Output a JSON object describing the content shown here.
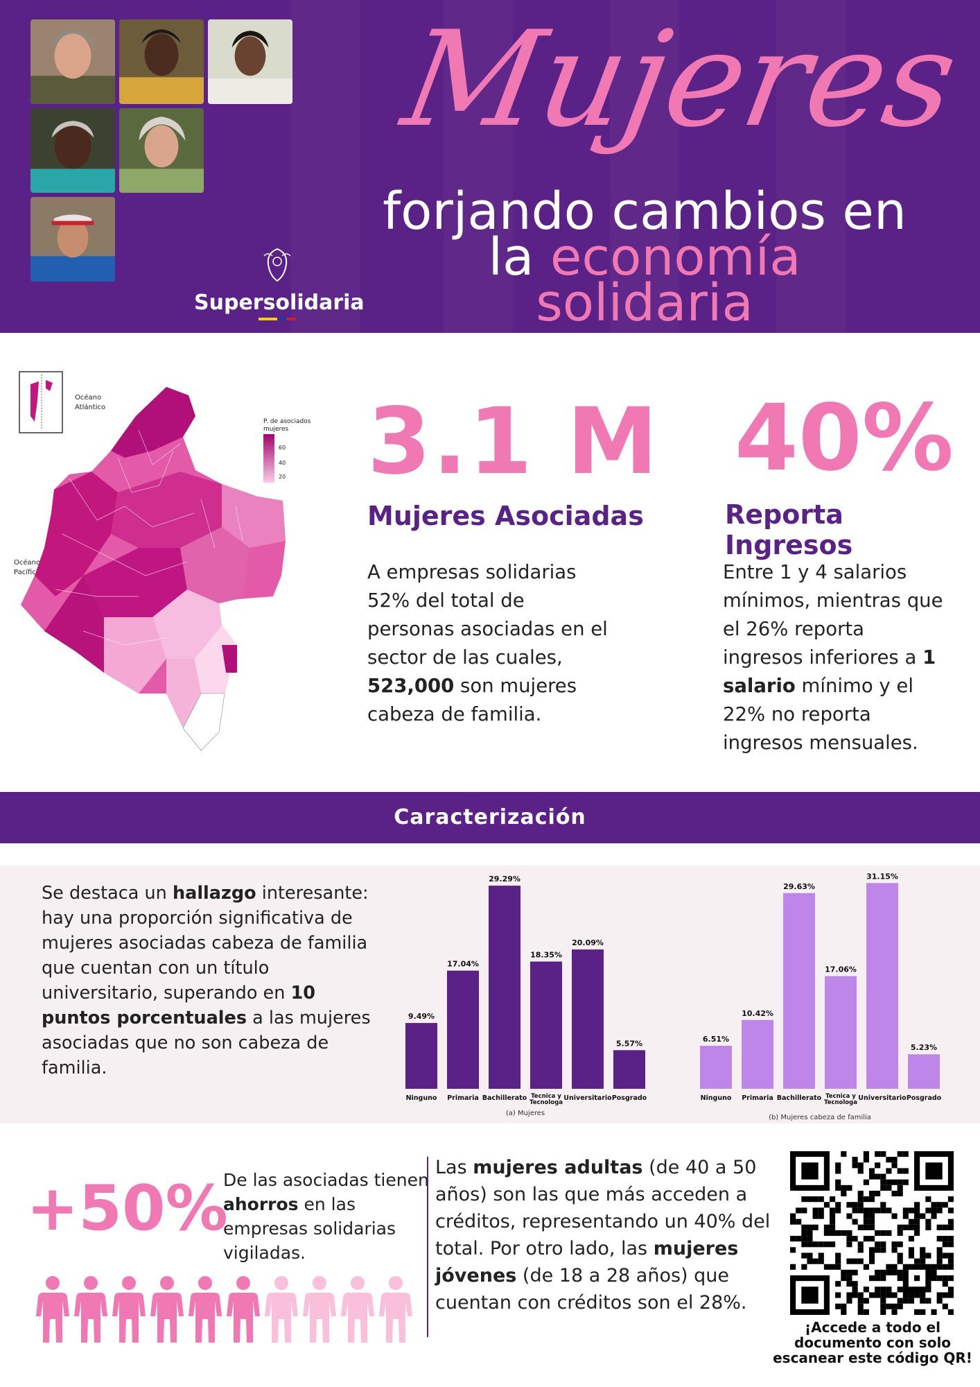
{
  "header": {
    "title": "Mujeres",
    "subtitle_line1": "forjando cambios en",
    "subtitle_line2_a": "la ",
    "subtitle_line2_b": "economía",
    "subtitle_line3": "solidaria",
    "logo_text": "Supersolidaria",
    "photos": [
      "photo-woman-1",
      "photo-woman-2",
      "photo-woman-3",
      "photo-woman-4",
      "photo-woman-5",
      "photo-woman-6"
    ]
  },
  "map": {
    "label_atlantic_1": "Océano",
    "label_atlantic_2": "Atlántico",
    "label_pacific_1": "Océano",
    "label_pacific_2": "Pacífico",
    "legend_title_1": "P. de asociados",
    "legend_title_2": "mujeres",
    "legend_ticks": [
      "60",
      "40",
      "20"
    ]
  },
  "stats": {
    "big1": "3.1 M",
    "head1": "Mujeres Asociadas",
    "body1_lines": [
      "A empresas solidarias",
      "52% del total de",
      "personas asociadas en el",
      "sector de las cuales,"
    ],
    "body1_bold": "523,000",
    "body1_after_bold": " son mujeres",
    "body1_last": "cabeza de familia.",
    "big2": "40%",
    "head2": "Reporta Ingresos",
    "body2_l1": "Entre 1 y 4 salarios",
    "body2_l2": "mínimos, mientras que",
    "body2_l3": "el 26% reporta",
    "body2_l4a": "ingresos inferiores a ",
    "body2_l4b": "1",
    "body2_l5a": "salario",
    "body2_l5b": " mínimo y el",
    "body2_l6": "22% no reporta",
    "body2_l7": "ingresos mensuales."
  },
  "section": {
    "title": "Caracterización"
  },
  "finding": {
    "p1": "Se destaca un ",
    "b1": "hallazgo",
    "p2": " interesante: hay una proporción significativa de mujeres asociadas cabeza de familia que cuentan con un título universitario, superando en ",
    "b2": "10 puntos porcentuales",
    "p3": " a las mujeres asociadas que no son cabeza de familia."
  },
  "chart_data": [
    {
      "type": "bar",
      "title": "(a) Mujeres",
      "categories": [
        "Ninguno",
        "Primaria",
        "Bachillerato",
        "Tecnica y Tecnologa",
        "Universitario",
        "Posgrado"
      ],
      "values": [
        9.49,
        17.04,
        29.29,
        18.35,
        20.09,
        5.57
      ],
      "labels": [
        "9.49%",
        "17.04%",
        "29.29%",
        "18.35%",
        "20.09%",
        "5.57%"
      ],
      "color": "#5a2286",
      "ylim": [
        0,
        30
      ]
    },
    {
      "type": "bar",
      "title": "(b) Mujeres cabeza de familia",
      "categories": [
        "Ninguno",
        "Primaria",
        "Bachillerato",
        "Tecnica y Tecnologa",
        "Universitario",
        "Posgrado"
      ],
      "values": [
        6.51,
        10.42,
        29.63,
        17.06,
        31.15,
        5.23
      ],
      "labels": [
        "6.51%",
        "10.42%",
        "29.63%",
        "17.06%",
        "31.15%",
        "5.23%"
      ],
      "color": "#bf86ea",
      "ylim": [
        0,
        31.5
      ]
    }
  ],
  "savings": {
    "big": "+50%",
    "t1": "De las asociadas tienen ",
    "b1": "ahorros",
    "t2": " en las empresas solidarias vigiladas.",
    "people_filled": 6,
    "people_total": 10,
    "color_filled": "#f179b3",
    "color_light": "#f9bfdb"
  },
  "credits": {
    "t1": "Las ",
    "b1": "mujeres adultas",
    "t2": " (de 40 a 50 años) son las que más acceden a créditos, representando un 40% del total. Por otro lado, las ",
    "b2": "mujeres jóvenes",
    "t3": " (de 18 a 28 años) que cuentan con créditos son el 28%."
  },
  "qr": {
    "caption_1": "¡Accede a todo el",
    "caption_2": "documento con solo",
    "caption_3": "escanear este código QR!"
  }
}
